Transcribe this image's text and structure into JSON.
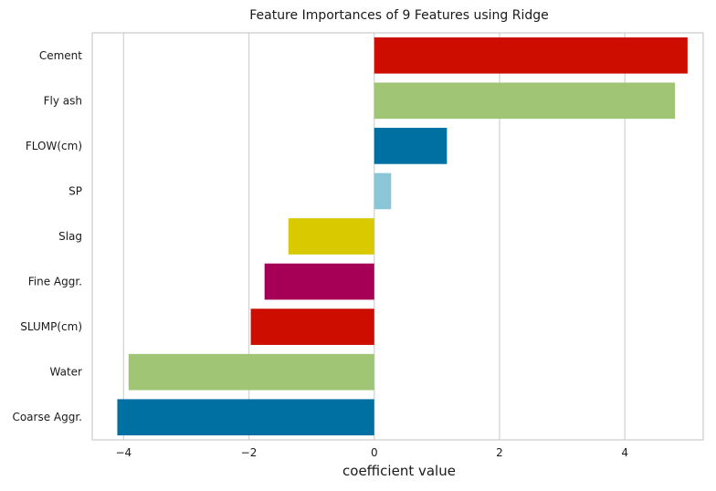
{
  "chart_data": {
    "type": "bar",
    "orientation": "horizontal",
    "title": "Feature Importances of 9 Features using Ridge",
    "xlabel": "coefficient value",
    "ylabel": "",
    "categories": [
      "Cement",
      "Fly ash",
      "FLOW(cm)",
      "SP",
      "Slag",
      "Fine Aggr.",
      "SLUMP(cm)",
      "Water",
      "Coarse Aggr."
    ],
    "values": [
      5.0,
      4.8,
      1.16,
      0.27,
      -1.37,
      -1.75,
      -1.97,
      -3.92,
      -4.1
    ],
    "colors": [
      "#cc0d00",
      "#a0c575",
      "#0070a3",
      "#8ac6d8",
      "#d8c900",
      "#a50056",
      "#cc0d00",
      "#a0c575",
      "#0070a3"
    ],
    "xlim": [
      -4.5,
      5.25
    ],
    "xticks": [
      -4,
      -2,
      0,
      2,
      4
    ],
    "xtick_labels": [
      "−4",
      "−2",
      "0",
      "2",
      "4"
    ],
    "grid": true,
    "grid_color": "#d4d4d4",
    "frame_color": "#cccccc"
  }
}
